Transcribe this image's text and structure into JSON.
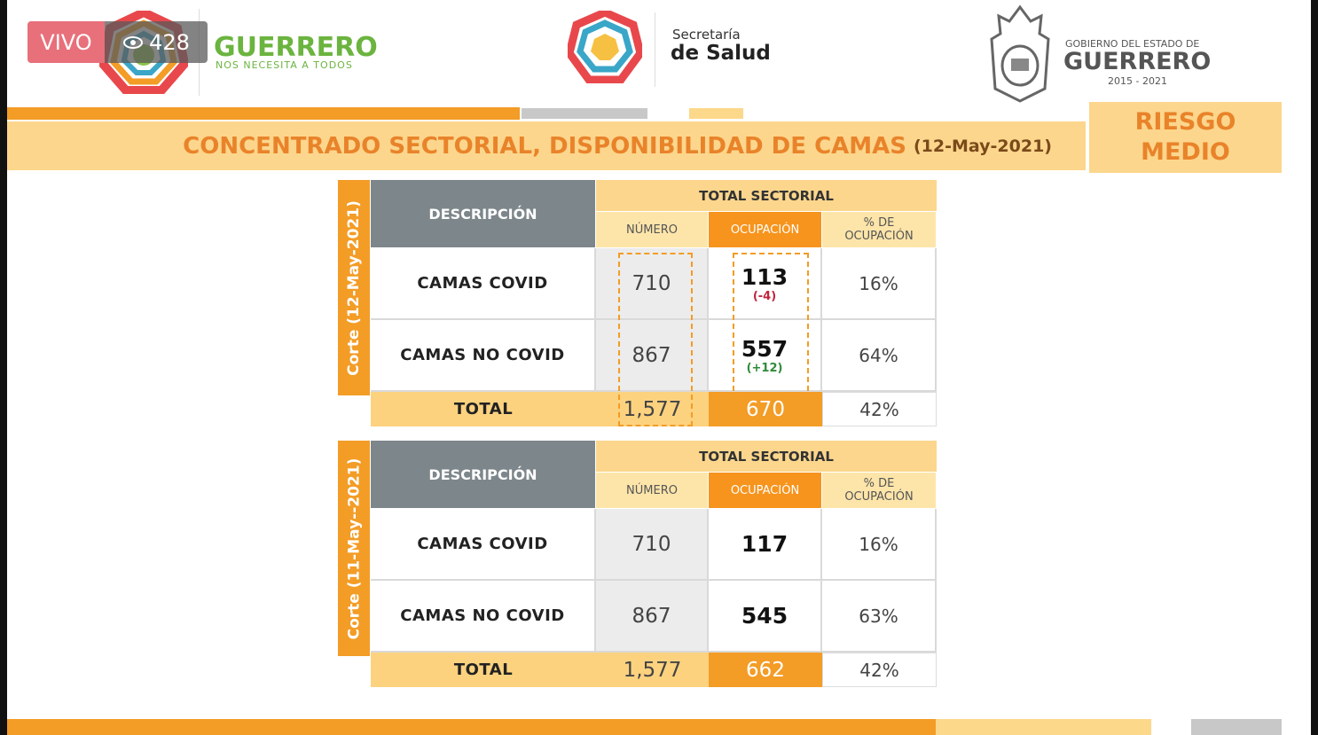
{
  "overlay": {
    "live": "VIVO",
    "viewers": "428"
  },
  "header": {
    "left_logo": {
      "title": "GUERRERO",
      "subtitle": "NOS NECESITA A TODOS"
    },
    "center_logo": {
      "line1": "Secretaría",
      "line2": "de Salud"
    },
    "right_logo": {
      "line1": "GOBIERNO DEL ESTADO DE",
      "line2": "GUERRERO",
      "line3": "2015 - 2021"
    }
  },
  "title": {
    "text": "CONCENTRADO SECTORIAL, DISPONIBILIDAD DE CAMAS",
    "date": "(12-May-2021)"
  },
  "risk": {
    "line1": "RIESGO",
    "line2": "MEDIO"
  },
  "tables": [
    {
      "side_label": "Corte (12-May-2021)",
      "description_header": "DESCRIPCIÓN",
      "group_header": "TOTAL SECTORIAL",
      "columns": [
        "NÚMERO",
        "OCUPACIÓN",
        "% DE OCUPACIÓN"
      ],
      "rows": [
        {
          "label": "CAMAS COVID",
          "numero": "710",
          "ocupacion": "113",
          "change": "(-4)",
          "change_color": "#c0243c",
          "pct": "16%"
        },
        {
          "label": "CAMAS NO COVID",
          "numero": "867",
          "ocupacion": "557",
          "change": "(+12)",
          "change_color": "#2e8b3a",
          "pct": "64%"
        }
      ],
      "total": {
        "label": "TOTAL",
        "numero": "1,577",
        "ocupacion": "670",
        "pct": "42%"
      }
    },
    {
      "side_label": "Corte (11-May--2021)",
      "description_header": "DESCRIPCIÓN",
      "group_header": "TOTAL SECTORIAL",
      "columns": [
        "NÚMERO",
        "OCUPACIÓN",
        "% DE OCUPACIÓN"
      ],
      "rows": [
        {
          "label": "CAMAS COVID",
          "numero": "710",
          "ocupacion": "117",
          "pct": "16%"
        },
        {
          "label": "CAMAS NO COVID",
          "numero": "867",
          "ocupacion": "545",
          "pct": "63%"
        }
      ],
      "total": {
        "label": "TOTAL",
        "numero": "1,577",
        "ocupacion": "662",
        "pct": "42%"
      }
    }
  ]
}
